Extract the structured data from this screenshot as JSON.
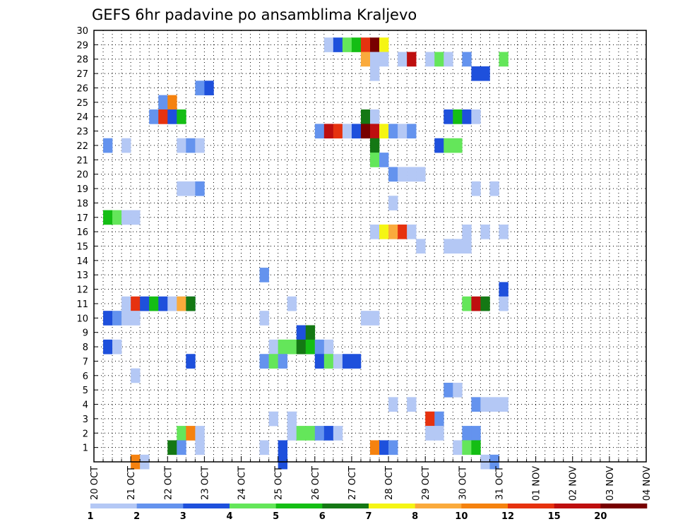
{
  "chart_data": {
    "type": "heatmap",
    "title": "GEFS 6hr padavine po ansamblima Kraljevo",
    "xlabel": "",
    "ylabel": "",
    "x_ticks": [
      "20 OCT",
      "21 OCT",
      "22 OCT",
      "23 OCT",
      "24 OCT",
      "25 OCT",
      "26 OCT",
      "27 OCT",
      "28 OCT",
      "29 OCT",
      "30 OCT",
      "31 OCT",
      "01 NOV",
      "02 NOV",
      "03 NOV",
      "04 NOV"
    ],
    "y_ticks": [
      "1",
      "2",
      "3",
      "4",
      "5",
      "6",
      "7",
      "8",
      "9",
      "10",
      "11",
      "12",
      "13",
      "14",
      "15",
      "16",
      "17",
      "18",
      "19",
      "20",
      "21",
      "22",
      "23",
      "24",
      "25",
      "26",
      "27",
      "28",
      "29",
      "30"
    ],
    "members_range": [
      0,
      30
    ],
    "steps_per_day": 4,
    "total_steps": 60,
    "grid": "dotted",
    "legend_position": "bottom",
    "legend_labels": [
      "1",
      "2",
      "3",
      "4",
      "5",
      "6",
      "7",
      "8",
      "10",
      "12",
      "15",
      "20"
    ],
    "colors": [
      "#b4c8f5",
      "#6493ee",
      "#1e50dc",
      "#64e65a",
      "#14be14",
      "#147814",
      "#f5f514",
      "#faaa3c",
      "#f5820f",
      "#e6320f",
      "#be0f0f",
      "#780000"
    ],
    "cells": [
      [
        27,
        30,
        1
      ],
      [
        29,
        25,
        1
      ],
      [
        29,
        26,
        3
      ],
      [
        29,
        27,
        4
      ],
      [
        29,
        28,
        5
      ],
      [
        29,
        29,
        10
      ],
      [
        29,
        30,
        12
      ],
      [
        29,
        31,
        7
      ],
      [
        28,
        29,
        8
      ],
      [
        28,
        30,
        1
      ],
      [
        28,
        31,
        1
      ],
      [
        28,
        33,
        1
      ],
      [
        28,
        34,
        11
      ],
      [
        28,
        36,
        1
      ],
      [
        28,
        37,
        4
      ],
      [
        28,
        38,
        1
      ],
      [
        28,
        40,
        2
      ],
      [
        28,
        44,
        4
      ],
      [
        27,
        41,
        3
      ],
      [
        27,
        42,
        3
      ],
      [
        26,
        11,
        2
      ],
      [
        26,
        12,
        3
      ],
      [
        25,
        7,
        2
      ],
      [
        25,
        8,
        9
      ],
      [
        24,
        6,
        2
      ],
      [
        24,
        7,
        10
      ],
      [
        24,
        8,
        3
      ],
      [
        24,
        9,
        5
      ],
      [
        24,
        29,
        6
      ],
      [
        24,
        30,
        1
      ],
      [
        24,
        38,
        3
      ],
      [
        24,
        39,
        5
      ],
      [
        24,
        40,
        3
      ],
      [
        24,
        41,
        1
      ],
      [
        23,
        24,
        2
      ],
      [
        23,
        25,
        11
      ],
      [
        23,
        26,
        10
      ],
      [
        23,
        27,
        1
      ],
      [
        23,
        28,
        3
      ],
      [
        23,
        29,
        12
      ],
      [
        23,
        30,
        11
      ],
      [
        23,
        31,
        7
      ],
      [
        23,
        32,
        2
      ],
      [
        23,
        33,
        1
      ],
      [
        23,
        34,
        2
      ],
      [
        22,
        1,
        2
      ],
      [
        22,
        3,
        1
      ],
      [
        22,
        9,
        1
      ],
      [
        22,
        10,
        2
      ],
      [
        22,
        11,
        1
      ],
      [
        22,
        30,
        6
      ],
      [
        22,
        37,
        3
      ],
      [
        22,
        38,
        4
      ],
      [
        22,
        39,
        4
      ],
      [
        21,
        30,
        4
      ],
      [
        21,
        31,
        2
      ],
      [
        20,
        32,
        2
      ],
      [
        20,
        33,
        1
      ],
      [
        20,
        34,
        1
      ],
      [
        20,
        35,
        1
      ],
      [
        19,
        9,
        1
      ],
      [
        19,
        10,
        1
      ],
      [
        19,
        11,
        2
      ],
      [
        19,
        41,
        1
      ],
      [
        19,
        43,
        1
      ],
      [
        18,
        32,
        1
      ],
      [
        17,
        1,
        5
      ],
      [
        17,
        2,
        4
      ],
      [
        17,
        3,
        1
      ],
      [
        17,
        4,
        1
      ],
      [
        16,
        30,
        1
      ],
      [
        16,
        31,
        7
      ],
      [
        16,
        32,
        8
      ],
      [
        16,
        33,
        10
      ],
      [
        16,
        34,
        1
      ],
      [
        16,
        40,
        1
      ],
      [
        16,
        42,
        1
      ],
      [
        16,
        44,
        1
      ],
      [
        15,
        35,
        1
      ],
      [
        15,
        38,
        1
      ],
      [
        15,
        39,
        1
      ],
      [
        15,
        40,
        1
      ],
      [
        13,
        18,
        2
      ],
      [
        12,
        44,
        3
      ],
      [
        11,
        9,
        1
      ],
      [
        11,
        10,
        2
      ],
      [
        11,
        3,
        1
      ],
      [
        11,
        4,
        10
      ],
      [
        11,
        5,
        3
      ],
      [
        11,
        6,
        5
      ],
      [
        11,
        7,
        3
      ],
      [
        11,
        8,
        1
      ],
      [
        11,
        9,
        8
      ],
      [
        11,
        10,
        6
      ],
      [
        11,
        21,
        1
      ],
      [
        11,
        40,
        4
      ],
      [
        11,
        41,
        11
      ],
      [
        11,
        42,
        6
      ],
      [
        11,
        44,
        1
      ],
      [
        10,
        1,
        3
      ],
      [
        10,
        2,
        2
      ],
      [
        10,
        3,
        1
      ],
      [
        10,
        4,
        1
      ],
      [
        10,
        18,
        1
      ],
      [
        10,
        29,
        1
      ],
      [
        10,
        30,
        1
      ],
      [
        9,
        22,
        3
      ],
      [
        9,
        23,
        6
      ],
      [
        8,
        1,
        3
      ],
      [
        8,
        2,
        1
      ],
      [
        8,
        19,
        1
      ],
      [
        8,
        20,
        4
      ],
      [
        8,
        21,
        4
      ],
      [
        8,
        22,
        6
      ],
      [
        8,
        23,
        5
      ],
      [
        8,
        24,
        2
      ],
      [
        8,
        25,
        1
      ],
      [
        7,
        10,
        3
      ],
      [
        7,
        18,
        2
      ],
      [
        7,
        19,
        4
      ],
      [
        7,
        20,
        2
      ],
      [
        7,
        24,
        3
      ],
      [
        7,
        25,
        4
      ],
      [
        7,
        26,
        1
      ],
      [
        7,
        27,
        3
      ],
      [
        7,
        28,
        3
      ],
      [
        6,
        4,
        1
      ],
      [
        5,
        38,
        2
      ],
      [
        5,
        39,
        1
      ],
      [
        4,
        32,
        1
      ],
      [
        4,
        34,
        1
      ],
      [
        4,
        41,
        2
      ],
      [
        4,
        42,
        1
      ],
      [
        4,
        43,
        1
      ],
      [
        4,
        44,
        1
      ],
      [
        3,
        19,
        1
      ],
      [
        3,
        21,
        1
      ],
      [
        3,
        36,
        10
      ],
      [
        3,
        37,
        2
      ],
      [
        2,
        9,
        4
      ],
      [
        2,
        10,
        9
      ],
      [
        2,
        11,
        1
      ],
      [
        2,
        21,
        1
      ],
      [
        2,
        22,
        4
      ],
      [
        2,
        23,
        4
      ],
      [
        2,
        24,
        2
      ],
      [
        2,
        25,
        3
      ],
      [
        2,
        26,
        1
      ],
      [
        2,
        36,
        1
      ],
      [
        2,
        37,
        1
      ],
      [
        2,
        40,
        2
      ],
      [
        2,
        41,
        2
      ],
      [
        1,
        8,
        6
      ],
      [
        1,
        9,
        2
      ],
      [
        1,
        11,
        1
      ],
      [
        1,
        18,
        1
      ],
      [
        1,
        20,
        3
      ],
      [
        1,
        30,
        9
      ],
      [
        1,
        31,
        3
      ],
      [
        1,
        32,
        2
      ],
      [
        1,
        39,
        1
      ],
      [
        1,
        40,
        4
      ],
      [
        1,
        41,
        5
      ],
      [
        0,
        4,
        9
      ],
      [
        0,
        5,
        1
      ],
      [
        0,
        20,
        3
      ],
      [
        0,
        42,
        1
      ],
      [
        0,
        43,
        2
      ]
    ]
  }
}
